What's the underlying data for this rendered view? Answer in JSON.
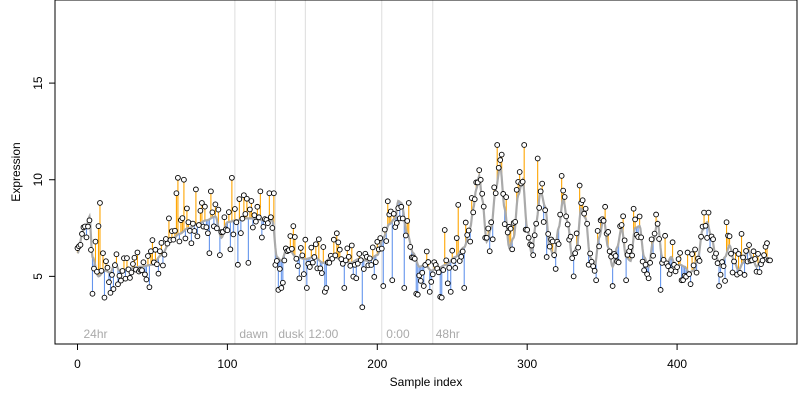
{
  "chart_data": {
    "type": "scatter",
    "xlabel": "Sample index",
    "ylabel": "Expression",
    "xlim": [
      -15,
      480
    ],
    "ylim": [
      1.5,
      19.3
    ],
    "x_ticks": [
      0,
      100,
      200,
      300,
      400
    ],
    "y_ticks": [
      5,
      10,
      15
    ],
    "grid": false,
    "legend": "none",
    "colors": {
      "above_fit": "#ffa500",
      "below_fit": "#6495ed",
      "fit_line": "#aaaaaa",
      "vlines": "#dddddd",
      "points": "#000000",
      "annotations": "#aaaaaa"
    },
    "annotations": [
      {
        "x": 2,
        "text": "24hr"
      },
      {
        "x": 106,
        "text": "dawn"
      },
      {
        "x": 132,
        "text": "dusk"
      },
      {
        "x": 152,
        "text": "12:00"
      },
      {
        "x": 204,
        "text": "0:00"
      },
      {
        "x": 237,
        "text": "48hr"
      }
    ],
    "vlines": [
      105,
      132,
      152,
      203,
      237
    ],
    "fit_knots": [
      [
        0,
        6.2
      ],
      [
        4,
        7.4
      ],
      [
        6,
        7.6
      ],
      [
        8,
        8.1
      ],
      [
        10,
        6.0
      ],
      [
        14,
        5.0
      ],
      [
        18,
        5.3
      ],
      [
        22,
        5.2
      ],
      [
        25,
        5.7
      ],
      [
        28,
        5.3
      ],
      [
        35,
        5.4
      ],
      [
        42,
        5.5
      ],
      [
        50,
        5.6
      ],
      [
        56,
        6.1
      ],
      [
        62,
        6.8
      ],
      [
        68,
        7.2
      ],
      [
        74,
        7.5
      ],
      [
        80,
        7.7
      ],
      [
        86,
        7.9
      ],
      [
        92,
        8.1
      ],
      [
        96,
        7.0
      ],
      [
        100,
        7.8
      ],
      [
        106,
        7.9
      ],
      [
        112,
        8.0
      ],
      [
        118,
        8.0
      ],
      [
        124,
        7.9
      ],
      [
        130,
        7.9
      ],
      [
        133,
        6.0
      ],
      [
        136,
        5.8
      ],
      [
        140,
        6.5
      ],
      [
        146,
        6.0
      ],
      [
        152,
        5.9
      ],
      [
        158,
        6.0
      ],
      [
        164,
        5.7
      ],
      [
        170,
        6.0
      ],
      [
        176,
        5.9
      ],
      [
        182,
        5.7
      ],
      [
        188,
        5.9
      ],
      [
        194,
        5.8
      ],
      [
        200,
        6.1
      ],
      [
        204,
        7.0
      ],
      [
        208,
        7.7
      ],
      [
        212,
        8.0
      ],
      [
        214,
        8.9
      ],
      [
        216,
        8.8
      ],
      [
        220,
        7.2
      ],
      [
        224,
        6.2
      ],
      [
        228,
        5.5
      ],
      [
        232,
        5.6
      ],
      [
        236,
        5.3
      ],
      [
        240,
        5.4
      ],
      [
        246,
        5.6
      ],
      [
        252,
        6.0
      ],
      [
        258,
        6.5
      ],
      [
        262,
        7.5
      ],
      [
        264,
        8.5
      ],
      [
        266,
        9.5
      ],
      [
        268,
        10.2
      ],
      [
        270,
        9.0
      ],
      [
        273,
        6.8
      ],
      [
        276,
        7.5
      ],
      [
        279,
        9.5
      ],
      [
        282,
        10.7
      ],
      [
        285,
        8.5
      ],
      [
        288,
        6.5
      ],
      [
        291,
        7.0
      ],
      [
        294,
        9.2
      ],
      [
        297,
        10.0
      ],
      [
        300,
        7.5
      ],
      [
        303,
        6.2
      ],
      [
        306,
        7.8
      ],
      [
        309,
        9.4
      ],
      [
        312,
        8.6
      ],
      [
        315,
        6.5
      ],
      [
        318,
        6.0
      ],
      [
        321,
        7.5
      ],
      [
        324,
        9.0
      ],
      [
        327,
        7.8
      ],
      [
        330,
        6.0
      ],
      [
        333,
        6.5
      ],
      [
        336,
        8.5
      ],
      [
        339,
        8.0
      ],
      [
        342,
        6.0
      ],
      [
        345,
        5.5
      ],
      [
        348,
        7.0
      ],
      [
        351,
        8.0
      ],
      [
        354,
        6.5
      ],
      [
        357,
        5.5
      ],
      [
        360,
        6.5
      ],
      [
        363,
        7.5
      ],
      [
        366,
        6.0
      ],
      [
        369,
        5.8
      ],
      [
        372,
        7.5
      ],
      [
        375,
        7.6
      ],
      [
        378,
        6.0
      ],
      [
        381,
        5.5
      ],
      [
        384,
        6.8
      ],
      [
        387,
        7.8
      ],
      [
        390,
        6.0
      ],
      [
        393,
        5.6
      ],
      [
        396,
        6.0
      ],
      [
        399,
        5.5
      ],
      [
        402,
        5.6
      ],
      [
        405,
        5.5
      ],
      [
        408,
        5.2
      ],
      [
        411,
        5.3
      ],
      [
        414,
        6.0
      ],
      [
        417,
        7.4
      ],
      [
        420,
        7.8
      ],
      [
        423,
        7.0
      ],
      [
        426,
        6.0
      ],
      [
        429,
        5.5
      ],
      [
        432,
        6.0
      ],
      [
        435,
        6.6
      ],
      [
        438,
        5.8
      ],
      [
        441,
        5.3
      ],
      [
        444,
        5.7
      ],
      [
        447,
        6.4
      ],
      [
        450,
        6.0
      ],
      [
        453,
        5.5
      ],
      [
        456,
        5.8
      ],
      [
        459,
        6.0
      ],
      [
        462,
        5.8
      ]
    ],
    "highlights": [
      [
        8,
        7.9
      ],
      [
        10,
        4.1
      ],
      [
        12,
        6.8
      ],
      [
        14,
        7.6
      ],
      [
        15,
        8.8
      ],
      [
        17,
        6.2
      ],
      [
        18,
        3.9
      ],
      [
        21,
        4.7
      ],
      [
        45,
        5.1
      ],
      [
        49,
        6.3
      ],
      [
        55,
        6.3
      ],
      [
        61,
        8.0
      ],
      [
        64,
        6.9
      ],
      [
        66,
        9.3
      ],
      [
        67,
        10.1
      ],
      [
        71,
        10.0
      ],
      [
        74,
        7.8
      ],
      [
        79,
        9.5
      ],
      [
        83,
        8.8
      ],
      [
        88,
        6.2
      ],
      [
        89,
        9.4
      ],
      [
        95,
        6.1
      ],
      [
        102,
        6.4
      ],
      [
        103,
        10.1
      ],
      [
        107,
        5.6
      ],
      [
        108,
        9.0
      ],
      [
        111,
        9.2
      ],
      [
        114,
        5.7
      ],
      [
        116,
        8.9
      ],
      [
        120,
        8.6
      ],
      [
        122,
        9.4
      ],
      [
        128,
        9.3
      ],
      [
        131,
        9.3
      ],
      [
        134,
        4.3
      ],
      [
        136,
        4.4
      ],
      [
        144,
        7.6
      ],
      [
        148,
        4.9
      ],
      [
        152,
        6.9
      ],
      [
        153,
        4.4
      ],
      [
        158,
        6.0
      ],
      [
        165,
        4.2
      ],
      [
        171,
        6.9
      ],
      [
        178,
        4.4
      ],
      [
        183,
        6.6
      ],
      [
        186,
        4.9
      ],
      [
        190,
        3.4
      ],
      [
        197,
        6.5
      ],
      [
        204,
        4.5
      ],
      [
        208,
        8.2
      ],
      [
        210,
        4.8
      ],
      [
        215,
        8.0
      ],
      [
        218,
        4.4
      ],
      [
        221,
        8.8
      ],
      [
        226,
        4.1
      ],
      [
        231,
        4.5
      ],
      [
        235,
        4.2
      ],
      [
        243,
        3.9
      ],
      [
        245,
        7.4
      ],
      [
        249,
        4.2
      ],
      [
        254,
        8.7
      ],
      [
        258,
        4.4
      ],
      [
        262,
        6.8
      ],
      [
        268,
        10.5
      ],
      [
        275,
        6.3
      ],
      [
        280,
        11.8
      ],
      [
        283,
        11.3
      ],
      [
        286,
        9.1
      ],
      [
        290,
        6.4
      ],
      [
        295,
        10.4
      ],
      [
        298,
        11.8
      ],
      [
        301,
        7.0
      ],
      [
        304,
        6.1
      ],
      [
        307,
        11.1
      ],
      [
        309,
        9.4
      ],
      [
        313,
        6.0
      ],
      [
        318,
        6.1
      ],
      [
        323,
        10.2
      ],
      [
        328,
        6.9
      ],
      [
        331,
        5.0
      ],
      [
        335,
        9.7
      ],
      [
        341,
        5.6
      ],
      [
        346,
        4.8
      ],
      [
        349,
        7.9
      ],
      [
        352,
        8.6
      ],
      [
        354,
        7.3
      ],
      [
        357,
        4.5
      ],
      [
        362,
        7.6
      ],
      [
        366,
        4.8
      ],
      [
        371,
        8.5
      ],
      [
        375,
        8.1
      ],
      [
        381,
        4.9
      ],
      [
        386,
        8.2
      ],
      [
        389,
        4.3
      ],
      [
        392,
        7.1
      ],
      [
        398,
        5.6
      ],
      [
        403,
        4.8
      ],
      [
        409,
        4.6
      ],
      [
        418,
        8.3
      ],
      [
        421,
        8.3
      ],
      [
        428,
        4.5
      ],
      [
        433,
        7.8
      ],
      [
        437,
        5.2
      ],
      [
        443,
        7.2
      ],
      [
        452,
        5.9
      ],
      [
        458,
        6.1
      ],
      [
        463,
        5.9
      ]
    ]
  }
}
